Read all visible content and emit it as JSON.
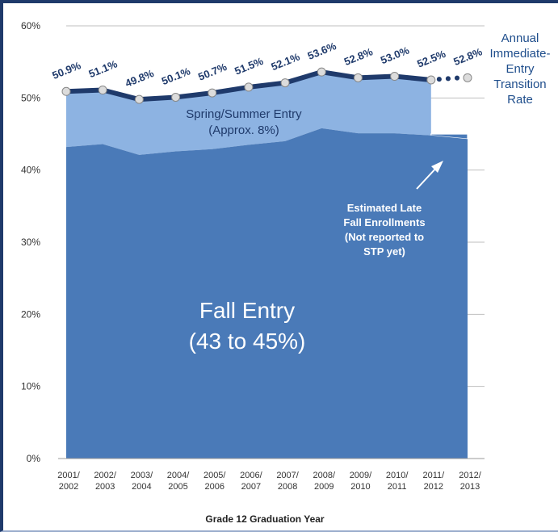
{
  "chart_data": {
    "type": "area",
    "categories": [
      "2001/\n2002",
      "2002/\n2003",
      "2003/\n2004",
      "2004/\n2005",
      "2005/\n2006",
      "2006/\n2007",
      "2007/\n2008",
      "2008/\n2009",
      "2009/\n2010",
      "2010/\n2011",
      "2011/\n2012",
      "2012/\n2013"
    ],
    "y_ticks": [
      "0%",
      "10%",
      "20%",
      "30%",
      "40%",
      "50%",
      "60%"
    ],
    "ylim": [
      0,
      60
    ],
    "xlabel": "Grade 12 Graduation Year",
    "ylabel": "",
    "grid": "horizontal",
    "series": [
      {
        "name": "Fall Entry",
        "values": [
          43.2,
          43.6,
          42.1,
          42.6,
          42.9,
          43.5,
          44.0,
          45.8,
          45.1,
          45.1,
          44.8,
          44.3
        ]
      },
      {
        "name": "Spring/Summer Entry",
        "values": [
          7.7,
          7.5,
          7.7,
          7.5,
          7.8,
          8.0,
          8.1,
          7.8,
          7.7,
          7.9,
          7.7,
          null
        ]
      },
      {
        "name": "Estimated Late Fall Enrollments",
        "values": [
          null,
          null,
          null,
          null,
          null,
          null,
          null,
          null,
          null,
          null,
          0.2,
          0.7
        ]
      },
      {
        "name": "Annual Immediate-Entry Transition Rate",
        "values": [
          50.9,
          51.1,
          49.8,
          50.1,
          50.7,
          51.5,
          52.1,
          53.6,
          52.8,
          53.0,
          52.5,
          52.8
        ]
      }
    ],
    "rate_labels": [
      "50.9%",
      "51.1%",
      "49.8%",
      "50.1%",
      "50.7%",
      "51.5%",
      "52.1%",
      "53.6%",
      "52.8%",
      "53.0%",
      "52.5%",
      "52.8%"
    ],
    "legend": {
      "line1": "Annual",
      "line2": "Immediate-",
      "line3": "Entry",
      "line4": "Transition",
      "line5": "Rate"
    },
    "annotations": {
      "spring_line1": "Spring/Summer Entry",
      "spring_line2": "(Approx. 8%)",
      "fall_line1": "Fall Entry",
      "fall_line2": "(43 to 45%)",
      "late_line1": "Estimated Late",
      "late_line2": "Fall Enrollments",
      "late_line3": "(Not reported to",
      "late_line4": "STP yet)"
    },
    "colors": {
      "fall": "#4a7ab8",
      "spring": "#8db3e2",
      "line": "#1f3a6b",
      "grid": "#bfbfbf"
    }
  }
}
